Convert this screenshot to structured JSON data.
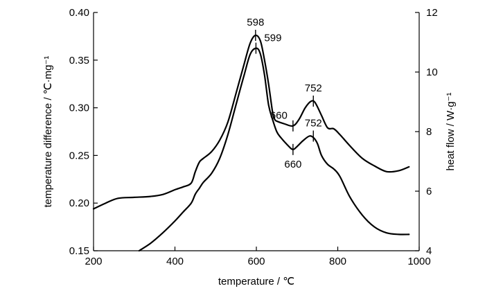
{
  "chart_data": {
    "type": "line",
    "xlabel": "temperature / ℃",
    "ylabel_left": "temperature difference / ℃·mg⁻¹",
    "ylabel_right": "heat flow / W·g⁻¹",
    "xlim": [
      200,
      1000
    ],
    "ylim_left": [
      0.15,
      0.4
    ],
    "ylim_right": [
      4,
      12
    ],
    "xticks": [
      200,
      400,
      600,
      800,
      1000
    ],
    "yticks_left": [
      0.15,
      0.2,
      0.25,
      0.3,
      0.35,
      0.4
    ],
    "yticks_right": [
      4,
      6,
      8,
      10,
      12
    ],
    "ytick_labels_left": [
      "0.15",
      "0.20",
      "0.25",
      "0.30",
      "0.35",
      "0.40"
    ],
    "ytick_labels_right": [
      "4",
      "6",
      "8",
      "10",
      "12"
    ],
    "grid": false,
    "line_color": "#000000",
    "series": [
      {
        "axis": "left",
        "x": [
          200,
          230,
          260,
          300,
          340,
          370,
          400,
          420,
          440,
          450,
          460,
          470,
          490,
          510,
          530,
          550,
          570,
          585,
          598,
          610,
          620,
          630,
          640,
          645,
          650,
          670,
          690,
          705,
          720,
          735,
          745,
          760,
          775,
          790,
          805,
          830,
          860,
          890,
          920,
          950,
          975
        ],
        "y": [
          0.194,
          0.2,
          0.205,
          0.206,
          0.207,
          0.209,
          0.214,
          0.217,
          0.221,
          0.233,
          0.243,
          0.247,
          0.254,
          0.266,
          0.285,
          0.315,
          0.346,
          0.368,
          0.376,
          0.37,
          0.35,
          0.325,
          0.295,
          0.288,
          0.286,
          0.283,
          0.281,
          0.288,
          0.3,
          0.307,
          0.305,
          0.292,
          0.279,
          0.278,
          0.272,
          0.26,
          0.247,
          0.239,
          0.233,
          0.234,
          0.238
        ]
      },
      {
        "axis": "right",
        "x": [
          312,
          340,
          370,
          400,
          420,
          440,
          450,
          460,
          470,
          490,
          510,
          530,
          550,
          570,
          585,
          600,
          610,
          620,
          630,
          640,
          650,
          660,
          680,
          690,
          700,
          715,
          730,
          740,
          750,
          760,
          775,
          790,
          805,
          830,
          860,
          890,
          920,
          950,
          975
        ],
        "y": [
          4.0,
          4.25,
          4.6,
          5.0,
          5.3,
          5.6,
          5.9,
          6.1,
          6.3,
          6.6,
          7.1,
          7.9,
          8.9,
          9.9,
          10.6,
          10.8,
          10.6,
          9.9,
          8.9,
          8.4,
          8.0,
          7.8,
          7.5,
          7.4,
          7.5,
          7.7,
          7.85,
          7.8,
          7.6,
          7.2,
          6.9,
          6.75,
          6.5,
          5.8,
          5.2,
          4.8,
          4.6,
          4.55,
          4.55
        ]
      }
    ],
    "annotations": [
      {
        "text": "598",
        "x": 598,
        "y": 0.376,
        "axis": "left",
        "pos": "above"
      },
      {
        "text": "599",
        "x": 599,
        "y": 10.8,
        "axis": "right",
        "pos": "above-right"
      },
      {
        "text": "660",
        "x": 690,
        "y": 0.281,
        "axis": "left",
        "pos": "above-left"
      },
      {
        "text": "752",
        "x": 740,
        "y": 0.307,
        "axis": "left",
        "pos": "above"
      },
      {
        "text": "752",
        "x": 740,
        "y": 7.85,
        "axis": "right",
        "pos": "above"
      },
      {
        "text": "660",
        "x": 690,
        "y": 7.4,
        "axis": "right",
        "pos": "below"
      }
    ]
  }
}
